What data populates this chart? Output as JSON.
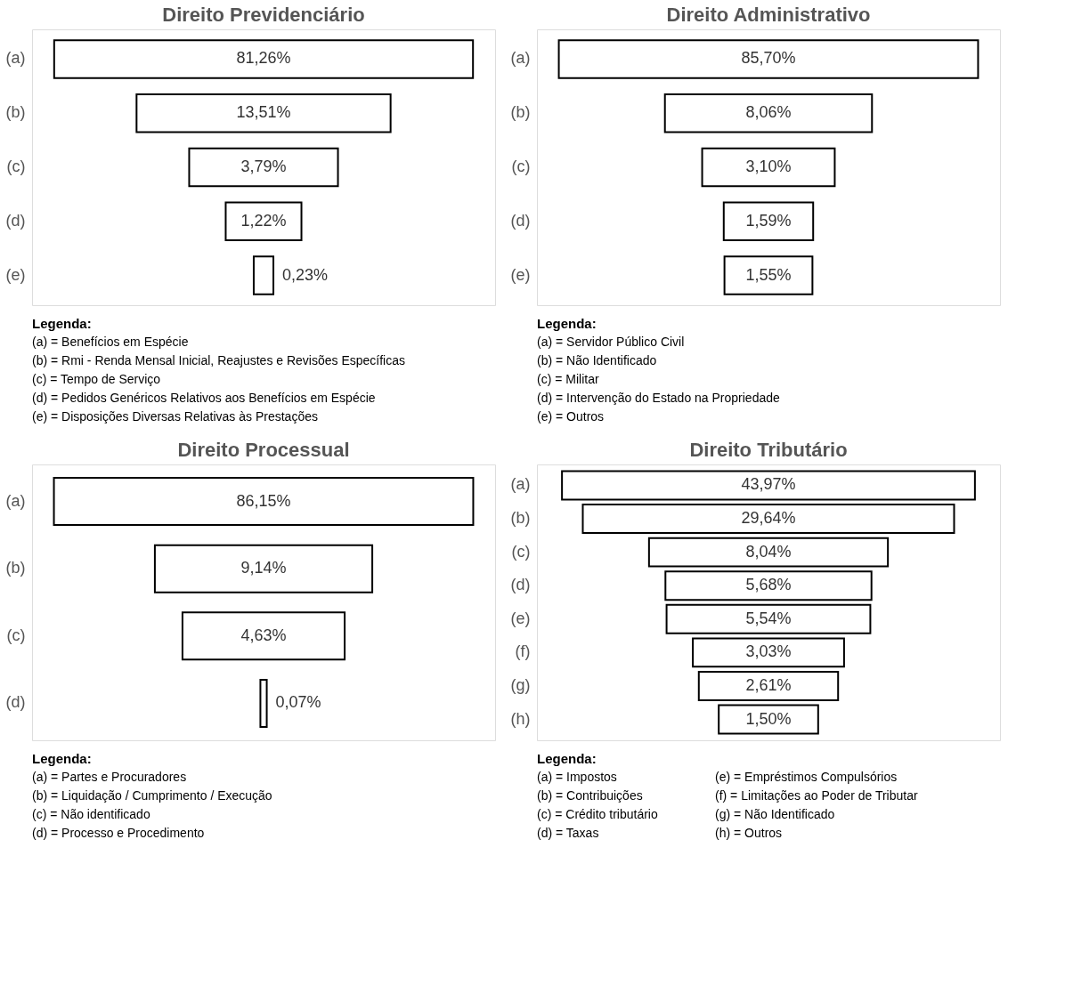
{
  "chart_data": [
    {
      "type": "other",
      "title": "Direito Previdenciário",
      "categories": [
        "(a)",
        "(b)",
        "(c)",
        "(d)",
        "(e)"
      ],
      "values": [
        81.26,
        13.51,
        3.79,
        1.22,
        0.23
      ],
      "value_labels": [
        "81,26%",
        "13,51%",
        "3,79%",
        "1,22%",
        "0,23%"
      ],
      "color": "#ffffff",
      "annotations": [
        "Legenda:",
        "(a) = Benefícios em Espécie",
        "(b) = Rmi - Renda Mensal Inicial, Reajustes e Revisões Específicas",
        "(c) = Tempo de Serviço",
        "(d) = Pedidos Genéricos Relativos aos Benefícios em Espécie",
        "(e) = Disposições Diversas Relativas às Prestações"
      ]
    },
    {
      "type": "other",
      "title": "Direito Administrativo",
      "categories": [
        "(a)",
        "(b)",
        "(c)",
        "(d)",
        "(e)"
      ],
      "values": [
        85.7,
        8.06,
        3.1,
        1.59,
        1.55
      ],
      "value_labels": [
        "85,70%",
        "8,06%",
        "3,10%",
        "1,59%",
        "1,55%"
      ],
      "color": "#ffffff",
      "annotations": [
        "Legenda:",
        "(a) = Servidor Público Civil",
        "(b) = Não Identificado",
        "(c) = Militar",
        "(d) = Intervenção do Estado na Propriedade",
        "(e) = Outros"
      ]
    },
    {
      "type": "other",
      "title": "Direito Processual",
      "categories": [
        "(a)",
        "(b)",
        "(c)",
        "(d)"
      ],
      "values": [
        86.15,
        9.14,
        4.63,
        0.07
      ],
      "value_labels": [
        "86,15%",
        "9,14%",
        "4,63%",
        "0,07%"
      ],
      "color": "#ffffff",
      "annotations": [
        "Legenda:",
        "(a) = Partes e Procuradores",
        "(b) = Liquidação / Cumprimento / Execução",
        "(c) = Não identificado",
        "(d) = Processo e Procedimento"
      ]
    },
    {
      "type": "other",
      "title": "Direito Tributário",
      "categories": [
        "(a)",
        "(b)",
        "(c)",
        "(d)",
        "(e)",
        "(f)",
        "(g)",
        "(h)"
      ],
      "values": [
        43.97,
        29.64,
        8.04,
        5.68,
        5.54,
        3.03,
        2.61,
        1.5
      ],
      "value_labels": [
        "43,97%",
        "29,64%",
        "8,04%",
        "5,68%",
        "5,54%",
        "3,03%",
        "2,61%",
        "1,50%"
      ],
      "color": "#ffffff",
      "annotations": [
        "Legenda:",
        "(a) = Impostos",
        "(b) = Contribuições",
        "(c) = Crédito tributário",
        "(d) = Taxas",
        "(e) = Empréstimos Compulsórios",
        "(f) = Limitações ao Poder de Tributar",
        "(g) = Não Identificado",
        "(h) = Outros"
      ]
    }
  ]
}
